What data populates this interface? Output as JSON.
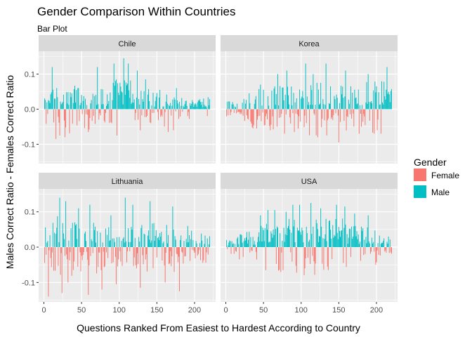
{
  "chart_data": {
    "type": "bar",
    "title": "Gender Comparison Within Countries",
    "subtitle": "Bar Plot",
    "xlabel": "Questions Ranked From Easiest to Hardest According to Country",
    "ylabel": "Males Correct Ratio - Females Correct Ratio",
    "xlim": [
      -7,
      228
    ],
    "ylim": [
      -0.155,
      0.165
    ],
    "x_ticks": [
      0,
      50,
      100,
      150,
      200
    ],
    "y_ticks": [
      -0.1,
      0.0,
      0.1
    ],
    "y_tick_labels": [
      "-0.1",
      "0.0",
      "0.1"
    ],
    "grid": true,
    "legend": {
      "title": "Gender",
      "position": "right",
      "entries": [
        {
          "name": "Female",
          "color": "#F8766D"
        },
        {
          "name": "Male",
          "color": "#00BFC4"
        }
      ]
    },
    "colors": {
      "female": "#F8766D",
      "male": "#00BFC4",
      "panel_bg": "#EBEBEB",
      "strip_bg": "#D9D9D9"
    },
    "panels": [
      {
        "name": "Chile",
        "n": 220,
        "segments": [
          {
            "x": [
              0,
              10
            ],
            "amp": 0.05,
            "neg_prob": 0.35
          },
          {
            "x": [
              10,
              30
            ],
            "amp": 0.09,
            "neg_prob": 0.2
          },
          {
            "x": [
              30,
              60
            ],
            "amp": 0.07,
            "neg_prob": 0.3
          },
          {
            "x": [
              60,
              90
            ],
            "amp": 0.06,
            "neg_prob": 0.3
          },
          {
            "x": [
              90,
              115
            ],
            "amp": 0.09,
            "neg_prob": 0.2
          },
          {
            "x": [
              115,
              140
            ],
            "amp": 0.06,
            "neg_prob": 0.25
          },
          {
            "x": [
              140,
              170
            ],
            "amp": 0.05,
            "neg_prob": 0.45
          },
          {
            "x": [
              170,
              220
            ],
            "amp": 0.035,
            "neg_prob": 0.2
          }
        ],
        "peaks": [
          [
            10,
            0.12
          ],
          [
            20,
            0.11
          ],
          [
            58,
            0.1
          ],
          [
            70,
            0.12
          ],
          [
            92,
            0.13
          ],
          [
            105,
            0.145
          ],
          [
            111,
            0.13
          ],
          [
            123,
            0.11
          ],
          [
            134,
            0.085
          ],
          [
            153,
            0.055
          ],
          [
            175,
            0.06
          ],
          [
            20,
            -0.075
          ],
          [
            27,
            -0.08
          ],
          [
            58,
            -0.065
          ],
          [
            96,
            -0.075
          ],
          [
            127,
            -0.06
          ],
          [
            164,
            -0.065
          ],
          [
            171,
            -0.06
          ]
        ]
      },
      {
        "name": "Korea",
        "n": 220,
        "segments": [
          {
            "x": [
              0,
              15
            ],
            "amp": 0.03,
            "neg_prob": 0.6
          },
          {
            "x": [
              15,
              30
            ],
            "amp": 0.035,
            "neg_prob": 0.8
          },
          {
            "x": [
              30,
              60
            ],
            "amp": 0.06,
            "neg_prob": 0.35
          },
          {
            "x": [
              60,
              100
            ],
            "amp": 0.07,
            "neg_prob": 0.3
          },
          {
            "x": [
              100,
              140
            ],
            "amp": 0.08,
            "neg_prob": 0.3
          },
          {
            "x": [
              140,
              180
            ],
            "amp": 0.07,
            "neg_prob": 0.4
          },
          {
            "x": [
              180,
              220
            ],
            "amp": 0.08,
            "neg_prob": 0.3
          }
        ],
        "peaks": [
          [
            45,
            0.07
          ],
          [
            68,
            0.1
          ],
          [
            80,
            0.11
          ],
          [
            105,
            0.13
          ],
          [
            115,
            0.1
          ],
          [
            132,
            0.13
          ],
          [
            158,
            0.11
          ],
          [
            188,
            0.1
          ],
          [
            213,
            0.12
          ],
          [
            35,
            -0.055
          ],
          [
            58,
            -0.06
          ],
          [
            90,
            -0.065
          ],
          [
            121,
            -0.08
          ],
          [
            149,
            -0.095
          ],
          [
            176,
            -0.07
          ],
          [
            200,
            -0.06
          ]
        ]
      },
      {
        "name": "Lithuania",
        "n": 220,
        "segments": [
          {
            "x": [
              0,
              10
            ],
            "amp": 0.06,
            "neg_prob": 0.6
          },
          {
            "x": [
              10,
              40
            ],
            "amp": 0.09,
            "neg_prob": 0.55
          },
          {
            "x": [
              40,
              80
            ],
            "amp": 0.08,
            "neg_prob": 0.55
          },
          {
            "x": [
              80,
              110
            ],
            "amp": 0.07,
            "neg_prob": 0.5
          },
          {
            "x": [
              110,
              140
            ],
            "amp": 0.07,
            "neg_prob": 0.5
          },
          {
            "x": [
              140,
              180
            ],
            "amp": 0.07,
            "neg_prob": 0.5
          },
          {
            "x": [
              180,
              220
            ],
            "amp": 0.05,
            "neg_prob": 0.45
          }
        ],
        "peaks": [
          [
            20,
            0.14
          ],
          [
            28,
            0.13
          ],
          [
            45,
            0.11
          ],
          [
            60,
            0.12
          ],
          [
            88,
            0.09
          ],
          [
            107,
            0.14
          ],
          [
            117,
            0.12
          ],
          [
            140,
            0.13
          ],
          [
            160,
            0.1
          ],
          [
            170,
            0.115
          ],
          [
            190,
            0.06
          ],
          [
            5,
            -0.14
          ],
          [
            23,
            -0.13
          ],
          [
            31,
            -0.1
          ],
          [
            58,
            -0.135
          ],
          [
            76,
            -0.12
          ],
          [
            95,
            -0.105
          ],
          [
            127,
            -0.115
          ],
          [
            160,
            -0.1
          ],
          [
            179,
            -0.125
          ]
        ]
      },
      {
        "name": "USA",
        "n": 220,
        "segments": [
          {
            "x": [
              0,
              15
            ],
            "amp": 0.025,
            "neg_prob": 0.5
          },
          {
            "x": [
              15,
              40
            ],
            "amp": 0.045,
            "neg_prob": 0.3
          },
          {
            "x": [
              40,
              80
            ],
            "amp": 0.08,
            "neg_prob": 0.25
          },
          {
            "x": [
              80,
              120
            ],
            "amp": 0.09,
            "neg_prob": 0.25
          },
          {
            "x": [
              120,
              160
            ],
            "amp": 0.09,
            "neg_prob": 0.25
          },
          {
            "x": [
              160,
              200
            ],
            "amp": 0.06,
            "neg_prob": 0.3
          },
          {
            "x": [
              200,
              220
            ],
            "amp": 0.035,
            "neg_prob": 0.3
          }
        ],
        "peaks": [
          [
            45,
            0.09
          ],
          [
            55,
            0.105
          ],
          [
            64,
            0.105
          ],
          [
            79,
            0.1
          ],
          [
            88,
            0.12
          ],
          [
            97,
            0.12
          ],
          [
            112,
            0.125
          ],
          [
            125,
            0.11
          ],
          [
            135,
            0.135
          ],
          [
            146,
            0.12
          ],
          [
            157,
            0.115
          ],
          [
            170,
            0.095
          ],
          [
            188,
            0.09
          ],
          [
            40,
            -0.035
          ],
          [
            75,
            -0.065
          ],
          [
            104,
            -0.06
          ],
          [
            135,
            -0.065
          ],
          [
            155,
            -0.045
          ],
          [
            198,
            -0.05
          ]
        ]
      }
    ]
  }
}
